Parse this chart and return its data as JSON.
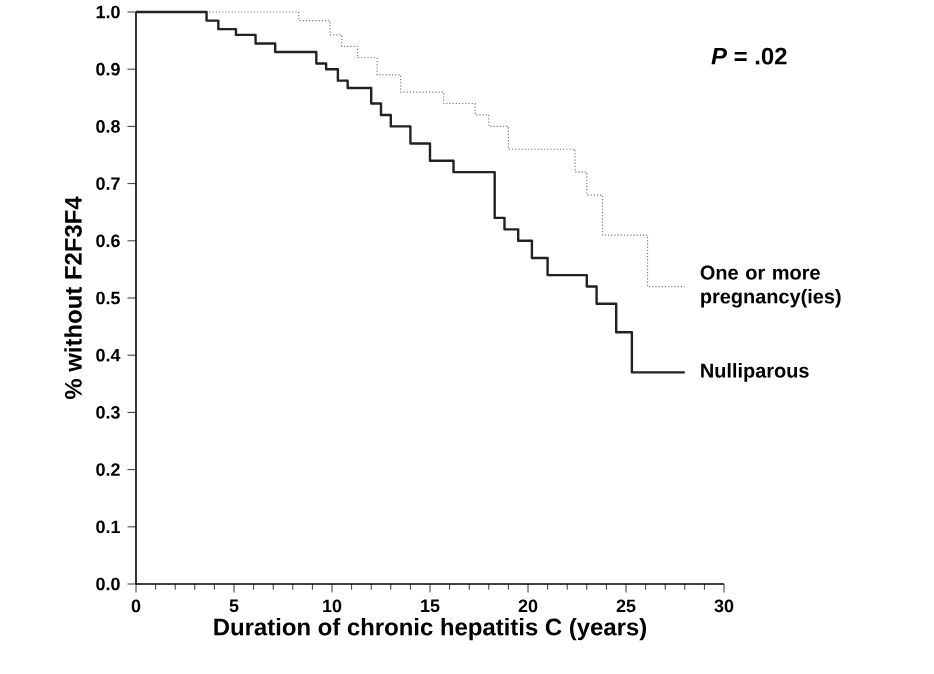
{
  "chart_data": {
    "type": "step",
    "xlabel": "Duration of chronic hepatitis C (years)",
    "ylabel": "% without F2F3F4",
    "xlim": [
      0,
      30
    ],
    "xticks": [
      0,
      5,
      10,
      15,
      20,
      25,
      30
    ],
    "ylim": [
      0,
      1
    ],
    "yticks": [
      {
        "value": 0,
        "label": "0.0"
      },
      {
        "value": 0.1,
        "label": "0.1"
      },
      {
        "value": 0.2,
        "label": "0.2"
      },
      {
        "value": 0.3,
        "label": "0.3"
      },
      {
        "value": 0.4,
        "label": "0.4"
      },
      {
        "value": 0.5,
        "label": "0.5"
      },
      {
        "value": 0.6,
        "label": "0.6"
      },
      {
        "value": 0.7,
        "label": "0.7"
      },
      {
        "value": 0.8,
        "label": "0.8"
      },
      {
        "value": 0.9,
        "label": "0.9"
      },
      {
        "value": 1,
        "label": "1.0"
      }
    ],
    "grid": false,
    "annotations": [
      "***P* = .02**"
    ],
    "series": [
      {
        "name": "One or more pregnancy(ies)",
        "color": "#777777",
        "line_style": "dotted",
        "x": [
          0,
          8.3,
          9.9,
          10.5,
          11.3,
          12.3,
          13.5,
          15.7,
          17.3,
          18,
          19,
          22.4,
          23,
          23.8,
          26.1,
          28
        ],
        "values": [
          1.0,
          0.985,
          0.96,
          0.94,
          0.92,
          0.89,
          0.86,
          0.84,
          0.82,
          0.8,
          0.76,
          0.72,
          0.68,
          0.61,
          0.52,
          0.52
        ]
      },
      {
        "name": "Nulliparous",
        "color": "#222222",
        "line_style": "solid",
        "x": [
          0,
          3.6,
          4.2,
          5.1,
          6.1,
          7.1,
          9.2,
          9.7,
          10.3,
          10.8,
          12,
          12.5,
          13,
          14,
          15,
          16.2,
          17.9,
          18.3,
          18.8,
          19.5,
          20.2,
          21,
          23,
          23.5,
          24.5,
          25.3,
          28
        ],
        "values": [
          1.0,
          0.985,
          0.97,
          0.96,
          0.945,
          0.93,
          0.91,
          0.9,
          0.88,
          0.867,
          0.84,
          0.82,
          0.8,
          0.77,
          0.74,
          0.72,
          0.72,
          0.64,
          0.62,
          0.6,
          0.57,
          0.54,
          0.52,
          0.49,
          0.44,
          0.37,
          0.37
        ]
      }
    ]
  }
}
